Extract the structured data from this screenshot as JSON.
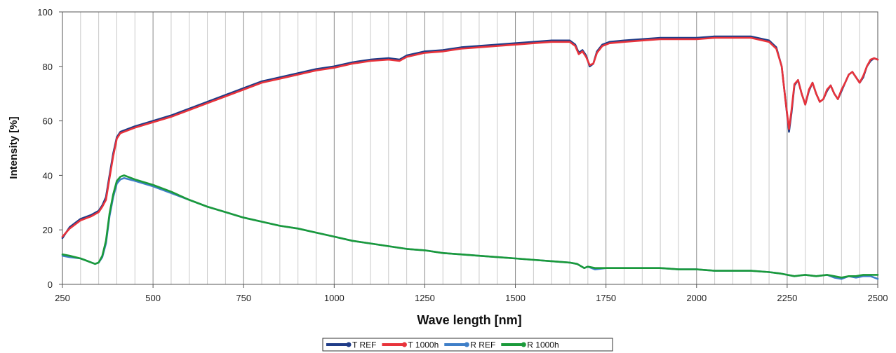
{
  "chart_data": {
    "type": "line",
    "title": "",
    "xlabel": "Wave length [nm]",
    "ylabel": "Intensity [%]",
    "xlim": [
      250,
      2500
    ],
    "ylim": [
      0,
      100
    ],
    "x_ticks": [
      250,
      500,
      750,
      1000,
      1250,
      1500,
      1750,
      2000,
      2250,
      2500
    ],
    "x_tick_labels": [
      "250",
      "500",
      "750",
      "1000",
      "1250",
      "1500",
      "1750",
      "2000",
      "2250",
      "2500"
    ],
    "y_ticks": [
      0,
      20,
      40,
      60,
      80,
      100
    ],
    "y_tick_labels": [
      "0",
      "20",
      "40",
      "60",
      "80",
      "100"
    ],
    "grid": "vertical",
    "legend_position": "bottom",
    "series": [
      {
        "name": "T REF",
        "color": "#1f3c88",
        "x": [
          250,
          270,
          300,
          330,
          350,
          360,
          370,
          380,
          390,
          400,
          410,
          420,
          450,
          500,
          550,
          600,
          650,
          700,
          750,
          800,
          850,
          900,
          950,
          1000,
          1050,
          1100,
          1150,
          1180,
          1200,
          1250,
          1300,
          1350,
          1400,
          1450,
          1500,
          1550,
          1600,
          1650,
          1665,
          1675,
          1685,
          1695,
          1705,
          1715,
          1725,
          1740,
          1760,
          1800,
          1850,
          1900,
          1950,
          2000,
          2050,
          2100,
          2150,
          2200,
          2220,
          2235,
          2245,
          2255,
          2262,
          2270,
          2280,
          2290,
          2300,
          2310,
          2320,
          2330,
          2340,
          2350,
          2360,
          2370,
          2380,
          2390,
          2400,
          2410,
          2420,
          2430,
          2440,
          2450,
          2460,
          2470,
          2480,
          2490,
          2500
        ],
        "values": [
          17,
          21,
          24,
          25.5,
          27,
          29,
          32,
          40,
          48,
          54,
          56,
          56.5,
          58,
          60,
          62,
          64.5,
          67,
          69.5,
          72,
          74.5,
          76,
          77.5,
          79,
          80,
          81.5,
          82.5,
          83,
          82.5,
          84,
          85.5,
          86,
          87,
          87.5,
          88,
          88.5,
          89,
          89.5,
          89.5,
          88,
          85,
          86,
          84,
          80,
          81,
          85.5,
          88,
          89,
          89.5,
          90,
          90.5,
          90.5,
          90.5,
          91,
          91,
          91,
          89.5,
          87,
          80,
          68,
          56,
          63,
          73,
          75,
          70,
          66,
          71,
          74,
          70,
          67,
          68,
          71,
          73,
          70,
          68,
          71,
          74,
          77,
          78,
          76,
          74,
          76,
          80,
          82,
          83,
          82.5
        ]
      },
      {
        "name": "T 1000h",
        "color": "#e8333b",
        "x": [
          250,
          270,
          300,
          330,
          350,
          360,
          370,
          380,
          390,
          400,
          410,
          420,
          450,
          500,
          550,
          600,
          650,
          700,
          750,
          800,
          850,
          900,
          950,
          1000,
          1050,
          1100,
          1150,
          1180,
          1200,
          1250,
          1300,
          1350,
          1400,
          1450,
          1500,
          1550,
          1600,
          1650,
          1665,
          1675,
          1685,
          1695,
          1705,
          1715,
          1725,
          1740,
          1760,
          1800,
          1850,
          1900,
          1950,
          2000,
          2050,
          2100,
          2150,
          2200,
          2220,
          2235,
          2245,
          2255,
          2262,
          2270,
          2280,
          2290,
          2300,
          2310,
          2320,
          2330,
          2340,
          2350,
          2360,
          2370,
          2380,
          2390,
          2400,
          2410,
          2420,
          2430,
          2440,
          2450,
          2460,
          2470,
          2480,
          2490,
          2500
        ],
        "values": [
          17.5,
          20.5,
          23.5,
          25,
          26.5,
          28.5,
          31,
          39,
          47,
          53.5,
          55.5,
          56,
          57.5,
          59.5,
          61.5,
          64,
          66.5,
          69,
          71.5,
          74,
          75.5,
          77,
          78.5,
          79.5,
          81,
          82,
          82.5,
          82,
          83.5,
          85,
          85.5,
          86.5,
          87,
          87.5,
          88,
          88.5,
          89,
          89,
          87.5,
          84.5,
          85.5,
          83.5,
          80.5,
          81,
          85,
          87.5,
          88.5,
          89,
          89.5,
          90,
          90,
          90,
          90.5,
          90.5,
          90.5,
          89,
          86.5,
          80,
          68,
          57,
          64,
          73.5,
          75,
          70,
          66,
          71.5,
          74,
          70,
          67,
          68,
          71.5,
          73,
          70,
          68,
          71.5,
          74,
          77,
          78,
          76,
          74,
          76.5,
          80,
          82.5,
          83,
          82.5
        ]
      },
      {
        "name": "R REF",
        "color": "#3f7fc8",
        "x": [
          250,
          270,
          300,
          320,
          340,
          350,
          360,
          370,
          380,
          390,
          400,
          410,
          420,
          450,
          500,
          550,
          600,
          650,
          700,
          750,
          800,
          850,
          900,
          950,
          1000,
          1050,
          1100,
          1150,
          1200,
          1250,
          1300,
          1350,
          1400,
          1450,
          1500,
          1550,
          1600,
          1650,
          1670,
          1690,
          1700,
          1720,
          1750,
          1800,
          1850,
          1900,
          1950,
          2000,
          2050,
          2100,
          2150,
          2200,
          2230,
          2250,
          2270,
          2300,
          2330,
          2360,
          2380,
          2400,
          2420,
          2440,
          2460,
          2480,
          2500
        ],
        "values": [
          10.5,
          10,
          9.5,
          8.5,
          7.5,
          8,
          10,
          15,
          25,
          32,
          37,
          38.5,
          39,
          38,
          36,
          33.5,
          31,
          28.5,
          26.5,
          24.5,
          23,
          21.5,
          20.5,
          19,
          17.5,
          16,
          15,
          14,
          13,
          12.5,
          11.5,
          11,
          10.5,
          10,
          9.5,
          9,
          8.5,
          8,
          7.5,
          6,
          6.5,
          5.5,
          6,
          6,
          6,
          6,
          5.5,
          5.5,
          5,
          5,
          5,
          4.5,
          4,
          3.5,
          3,
          3.5,
          3,
          3.5,
          2.5,
          2,
          3,
          2.5,
          3,
          3,
          2
        ]
      },
      {
        "name": "R 1000h",
        "color": "#1a9a3a",
        "x": [
          250,
          270,
          300,
          320,
          340,
          350,
          360,
          370,
          380,
          390,
          400,
          410,
          420,
          450,
          500,
          550,
          600,
          650,
          700,
          750,
          800,
          850,
          900,
          950,
          1000,
          1050,
          1100,
          1150,
          1200,
          1250,
          1300,
          1350,
          1400,
          1450,
          1500,
          1550,
          1600,
          1650,
          1670,
          1690,
          1700,
          1720,
          1750,
          1800,
          1850,
          1900,
          1950,
          2000,
          2050,
          2100,
          2150,
          2200,
          2230,
          2250,
          2270,
          2300,
          2330,
          2360,
          2380,
          2400,
          2420,
          2440,
          2460,
          2480,
          2500
        ],
        "values": [
          11,
          10.5,
          9.5,
          8.5,
          7.5,
          8,
          10.5,
          16,
          26,
          33,
          38,
          39.5,
          40,
          38.5,
          36.5,
          34,
          31,
          28.5,
          26.5,
          24.5,
          23,
          21.5,
          20.5,
          19,
          17.5,
          16,
          15,
          14,
          13,
          12.5,
          11.5,
          11,
          10.5,
          10,
          9.5,
          9,
          8.5,
          8,
          7.5,
          6,
          6.5,
          6,
          6,
          6,
          6,
          6,
          5.5,
          5.5,
          5,
          5,
          5,
          4.5,
          4,
          3.5,
          3,
          3.5,
          3,
          3.5,
          3,
          2.5,
          3,
          3,
          3.5,
          3.5,
          3.5
        ]
      }
    ]
  }
}
